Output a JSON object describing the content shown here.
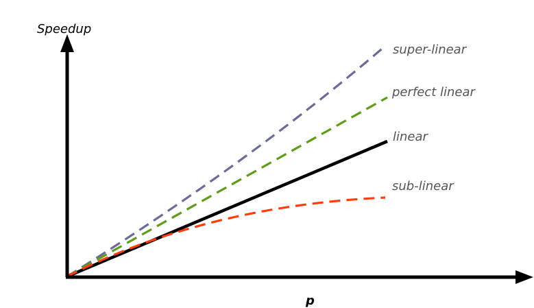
{
  "diagram": {
    "y_axis_label": "Speedup",
    "x_axis_label": "p",
    "curves": [
      {
        "id": "super-linear",
        "label": "super-linear",
        "color": "#6b6b9a",
        "style": "dashed"
      },
      {
        "id": "perfect-linear",
        "label": "perfect linear",
        "color": "#5f9c17",
        "style": "dashed"
      },
      {
        "id": "linear",
        "label": "linear",
        "color": "#000000",
        "style": "solid"
      },
      {
        "id": "sub-linear",
        "label": "sub-linear",
        "color": "#ff3d10",
        "style": "dashed"
      }
    ],
    "axis_color": "#000000",
    "label_color": "#555555"
  }
}
